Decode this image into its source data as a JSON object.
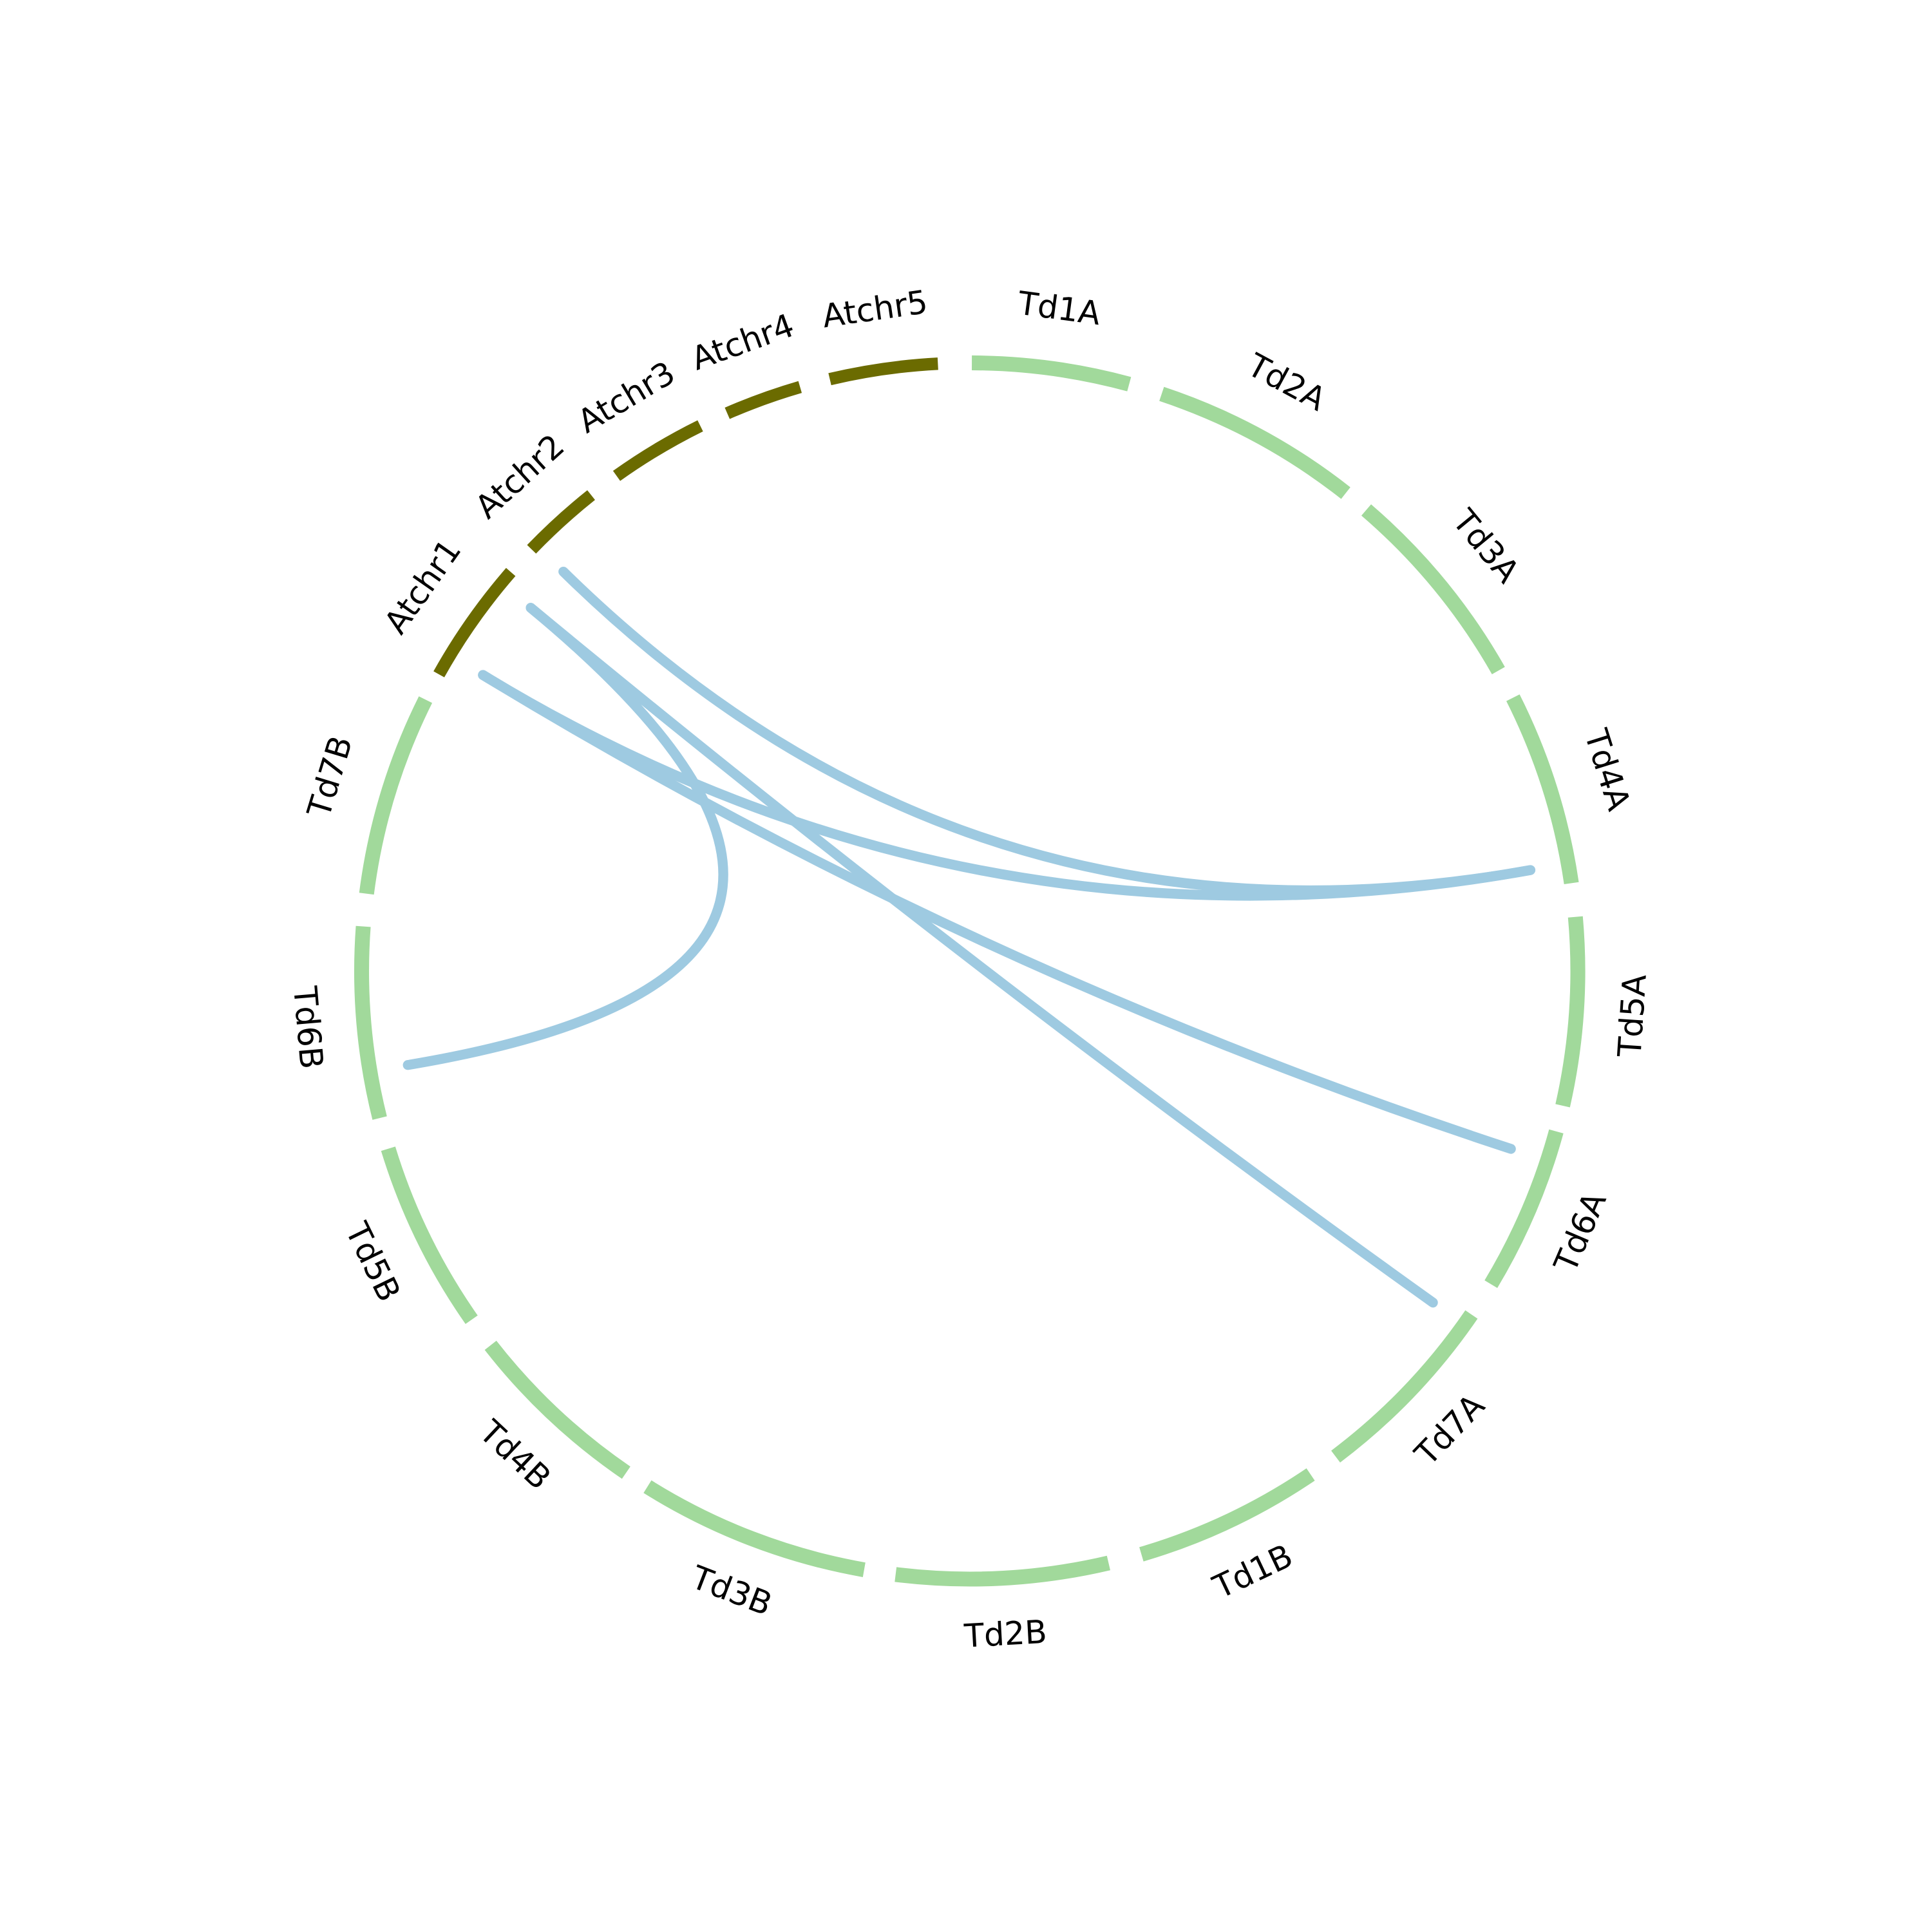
{
  "segments": [
    {
      "label": "Atchr1",
      "color": "#6b6b00"
    },
    {
      "label": "Atchr2",
      "color": "#6b6b00"
    },
    {
      "label": "Atchr3",
      "color": "#6b6b00"
    },
    {
      "label": "Atchr4",
      "color": "#6b6b00"
    },
    {
      "label": "Atchr5",
      "color": "#6b6b00"
    },
    {
      "label": "Td1A",
      "color": "#a1d99b"
    },
    {
      "label": "Td2A",
      "color": "#a1d99b"
    },
    {
      "label": "Td3A",
      "color": "#a1d99b"
    },
    {
      "label": "Td4A",
      "color": "#a1d99b"
    },
    {
      "label": "Td5A",
      "color": "#a1d99b"
    },
    {
      "label": "Td6A",
      "color": "#a1d99b"
    },
    {
      "label": "Td7A",
      "color": "#a1d99b"
    },
    {
      "label": "Td1B",
      "color": "#a1d99b"
    },
    {
      "label": "Td2B",
      "color": "#a1d99b"
    },
    {
      "label": "Td3B",
      "color": "#a1d99b"
    },
    {
      "label": "Td4B",
      "color": "#a1d99b"
    },
    {
      "label": "Td5B",
      "color": "#a1d99b"
    },
    {
      "label": "Td6B",
      "color": "#a1d99b"
    },
    {
      "label": "Td7B",
      "color": "#a1d99b"
    }
  ],
  "link_color": "#9ecae1",
  "links": [
    {
      "source": "Atchr2",
      "target": "Td4A"
    },
    {
      "source": "Atchr1",
      "target": "Td7A"
    },
    {
      "source": "Atchr1",
      "target": "Td4A"
    },
    {
      "source": "Atchr1",
      "target": "Td6A"
    },
    {
      "source": "Atchr1",
      "target": "Td6B"
    }
  ]
}
